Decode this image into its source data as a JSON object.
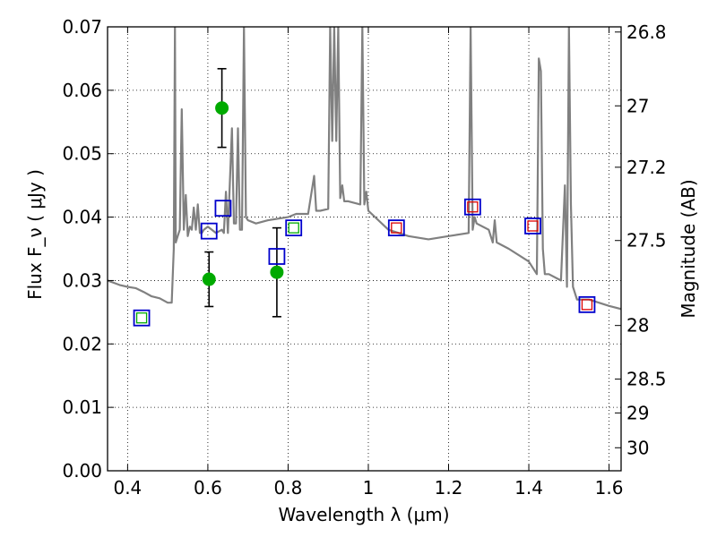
{
  "chart_data": {
    "type": "scatter",
    "xlabel": "Wavelength  λ (μm)",
    "ylabel": "Flux  F_ν  ( μJy )",
    "y2label": "Magnitude (AB)",
    "xlim": [
      0.35,
      1.63
    ],
    "ylim": [
      0.0,
      0.07
    ],
    "x_ticks": [
      0.4,
      0.6,
      0.8,
      1.0,
      1.2,
      1.4,
      1.6
    ],
    "x_tick_labels": [
      "0.4",
      "0.6",
      "0.8",
      "1",
      "1.2",
      "1.4",
      "1.6"
    ],
    "y_ticks": [
      0.0,
      0.01,
      0.02,
      0.03,
      0.04,
      0.05,
      0.06,
      0.07
    ],
    "y_tick_labels": [
      "0.00",
      "0.01",
      "0.02",
      "0.03",
      "0.04",
      "0.05",
      "0.06",
      "0.07"
    ],
    "mag_ticks": [
      26.8,
      27,
      27.2,
      27.5,
      28,
      28.5,
      29,
      30
    ],
    "mag_tick_labels": [
      "26.8",
      "27",
      "27.2",
      "27.5",
      "28",
      "28.5",
      "29",
      "30"
    ],
    "grid": true,
    "colors": {
      "spectrum": "#808080",
      "observed": "#00aa00",
      "model_box": "#0000cc",
      "green_inner": "#00aa00",
      "red_inner": "#dd0000",
      "errorbar": "#000000"
    },
    "series": [
      {
        "kind": "template-spectrum",
        "x": [
          0.35,
          0.38,
          0.4,
          0.42,
          0.44,
          0.46,
          0.48,
          0.5,
          0.51,
          0.515,
          0.518,
          0.52,
          0.525,
          0.53,
          0.535,
          0.54,
          0.545,
          0.55,
          0.555,
          0.56,
          0.565,
          0.57,
          0.575,
          0.58,
          0.585,
          0.59,
          0.6,
          0.62,
          0.635,
          0.64,
          0.645,
          0.65,
          0.66,
          0.665,
          0.67,
          0.675,
          0.68,
          0.685,
          0.69,
          0.695,
          0.7,
          0.72,
          0.75,
          0.8,
          0.82,
          0.85,
          0.865,
          0.87,
          0.875,
          0.88,
          0.9,
          0.905,
          0.91,
          0.915,
          0.92,
          0.925,
          0.93,
          0.935,
          0.94,
          0.95,
          0.98,
          0.985,
          0.99,
          0.995,
          1.0,
          1.05,
          1.1,
          1.15,
          1.2,
          1.25,
          1.255,
          1.26,
          1.265,
          1.27,
          1.3,
          1.31,
          1.315,
          1.32,
          1.35,
          1.4,
          1.42,
          1.425,
          1.43,
          1.435,
          1.44,
          1.45,
          1.48,
          1.49,
          1.495,
          1.5,
          1.505,
          1.51,
          1.52,
          1.55,
          1.6,
          1.63
        ],
        "y": [
          0.03,
          0.0293,
          0.029,
          0.0288,
          0.0282,
          0.0275,
          0.0272,
          0.0265,
          0.0265,
          0.035,
          0.07,
          0.036,
          0.037,
          0.038,
          0.057,
          0.038,
          0.0435,
          0.037,
          0.0385,
          0.038,
          0.0415,
          0.038,
          0.042,
          0.0375,
          0.0375,
          0.038,
          0.0385,
          0.0375,
          0.038,
          0.0375,
          0.044,
          0.0375,
          0.054,
          0.039,
          0.039,
          0.054,
          0.038,
          0.038,
          0.07,
          0.04,
          0.0395,
          0.039,
          0.0395,
          0.04,
          0.0405,
          0.0405,
          0.0465,
          0.041,
          0.041,
          0.041,
          0.0413,
          0.07,
          0.052,
          0.07,
          0.052,
          0.07,
          0.043,
          0.045,
          0.0425,
          0.0425,
          0.042,
          0.07,
          0.042,
          0.044,
          0.041,
          0.038,
          0.037,
          0.0365,
          0.037,
          0.0375,
          0.07,
          0.038,
          0.04,
          0.039,
          0.038,
          0.036,
          0.0395,
          0.036,
          0.035,
          0.033,
          0.031,
          0.065,
          0.063,
          0.035,
          0.031,
          0.031,
          0.03,
          0.045,
          0.029,
          0.07,
          0.042,
          0.029,
          0.027,
          0.027,
          0.026,
          0.0255
        ]
      },
      {
        "kind": "observed-flux",
        "x": [
          0.603,
          0.635,
          0.772
        ],
        "y": [
          0.0302,
          0.0572,
          0.0313
        ],
        "yerr": [
          0.0043,
          0.0062,
          0.007
        ]
      },
      {
        "kind": "model-photometry-green",
        "x": [
          0.435,
          0.603,
          0.638,
          0.772,
          0.814
        ],
        "y": [
          0.0241,
          0.0378,
          0.0414,
          0.0338,
          0.0383
        ]
      },
      {
        "kind": "model-photometry-red",
        "x": [
          1.07,
          1.26,
          1.41,
          1.545
        ],
        "y": [
          0.0383,
          0.0416,
          0.0386,
          0.0262
        ]
      }
    ]
  }
}
